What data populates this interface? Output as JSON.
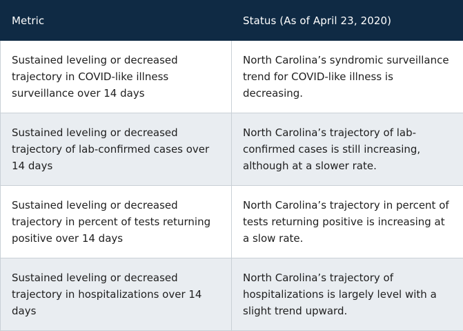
{
  "table": {
    "headers": [
      "Metric",
      "Status (As of April 23, 2020)"
    ],
    "rows": [
      {
        "metric": "Sustained leveling or decreased trajectory in COVID-like illness surveillance over 14 days",
        "status": "North Carolina’s syndromic surveillance trend for COVID-like illness is decreasing."
      },
      {
        "metric": "Sustained leveling or decreased trajectory of lab-confirmed cases over 14 days",
        "status": "North Carolina’s trajectory of lab-confirmed cases is still increasing, although at a slower rate."
      },
      {
        "metric": "Sustained leveling or decreased trajectory in percent of tests returning positive over 14 days",
        "status": "North Carolina’s trajectory in percent of tests returning positive is increasing at a slow rate."
      },
      {
        "metric": "Sustained leveling or decreased trajectory in hospitalizations over 14 days",
        "status": "North Carolina’s trajectory of hospitalizations is largely level with a slight trend upward."
      }
    ]
  }
}
